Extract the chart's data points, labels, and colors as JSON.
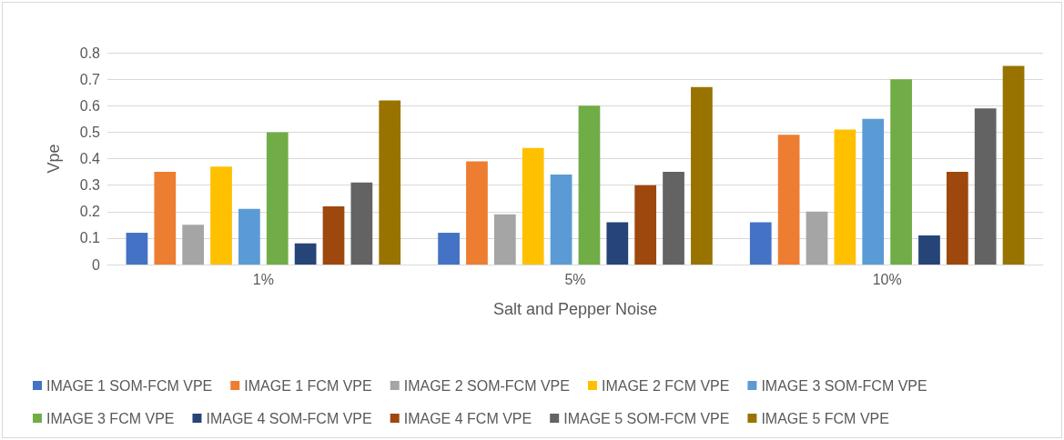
{
  "chart_data": {
    "type": "bar",
    "xlabel": "Salt and Pepper Noise",
    "ylabel": "Vpe",
    "categories": [
      "1%",
      "5%",
      "10%"
    ],
    "series": [
      {
        "name": "IMAGE 1 SOM-FCM VPE",
        "color": "#4472c4",
        "values": [
          0.12,
          0.12,
          0.16
        ]
      },
      {
        "name": "IMAGE 1 FCM VPE",
        "color": "#ed7d31",
        "values": [
          0.35,
          0.39,
          0.49
        ]
      },
      {
        "name": "IMAGE 2 SOM-FCM VPE",
        "color": "#a5a5a5",
        "values": [
          0.15,
          0.19,
          0.2
        ]
      },
      {
        "name": "IMAGE 2 FCM VPE",
        "color": "#ffc000",
        "values": [
          0.37,
          0.44,
          0.51
        ]
      },
      {
        "name": "IMAGE 3 SOM-FCM VPE",
        "color": "#5b9bd5",
        "values": [
          0.21,
          0.34,
          0.55
        ]
      },
      {
        "name": "IMAGE 3 FCM VPE",
        "color": "#70ad47",
        "values": [
          0.5,
          0.6,
          0.7
        ]
      },
      {
        "name": "IMAGE 4 SOM-FCM VPE",
        "color": "#264478",
        "values": [
          0.08,
          0.16,
          0.11
        ]
      },
      {
        "name": "IMAGE 4 FCM VPE",
        "color": "#9e480e",
        "values": [
          0.22,
          0.3,
          0.35
        ]
      },
      {
        "name": "IMAGE 5 SOM-FCM VPE",
        "color": "#636363",
        "values": [
          0.31,
          0.35,
          0.59
        ]
      },
      {
        "name": "IMAGE 5 FCM VPE",
        "color": "#997300",
        "values": [
          0.62,
          0.67,
          0.75
        ]
      }
    ],
    "ylim": [
      0,
      0.8
    ],
    "yticks": [
      0,
      0.1,
      0.2,
      0.3,
      0.4,
      0.5,
      0.6,
      0.7,
      0.8
    ],
    "grid": "y",
    "legend": "bottom"
  }
}
